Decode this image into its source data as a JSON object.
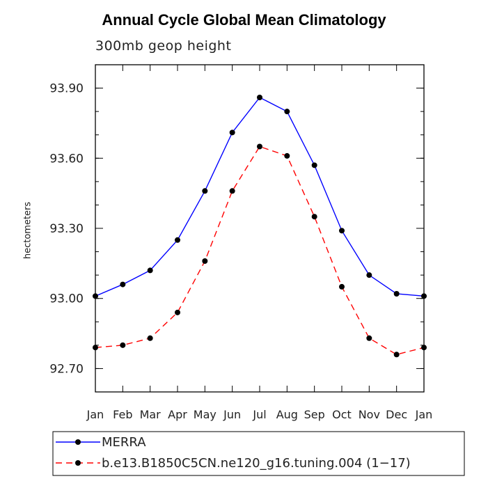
{
  "chart_data": {
    "type": "line",
    "title": "Annual Cycle Global Mean Climatology",
    "subtitle": "300mb geop height",
    "xlabel": "",
    "ylabel": "hectometers",
    "categories": [
      "Jan",
      "Feb",
      "Mar",
      "Apr",
      "May",
      "Jun",
      "Jul",
      "Aug",
      "Sep",
      "Oct",
      "Nov",
      "Dec",
      "Jan"
    ],
    "ylim": [
      92.6,
      94.0
    ],
    "yticks": [
      "93.90",
      "93.60",
      "93.30",
      "93.00",
      "92.70"
    ],
    "ytick_values": [
      93.9,
      93.6,
      93.3,
      93.0,
      92.7
    ],
    "series": [
      {
        "name": "MERRA",
        "color": "#0000ff",
        "dash": "solid",
        "marker": "filled-circle",
        "values": [
          93.01,
          93.06,
          93.12,
          93.25,
          93.46,
          93.71,
          93.86,
          93.8,
          93.57,
          93.29,
          93.1,
          93.02,
          93.01
        ]
      },
      {
        "name": "b.e13.B1850C5CN.ne120_g16.tuning.004 (1−17)",
        "color": "#ff0000",
        "dash": "dashed",
        "marker": "filled-circle",
        "values": [
          92.79,
          92.8,
          92.83,
          92.94,
          93.16,
          93.46,
          93.65,
          93.61,
          93.35,
          93.05,
          92.83,
          92.76,
          92.79
        ]
      }
    ],
    "legend_placement": "bottom",
    "grid": false
  }
}
